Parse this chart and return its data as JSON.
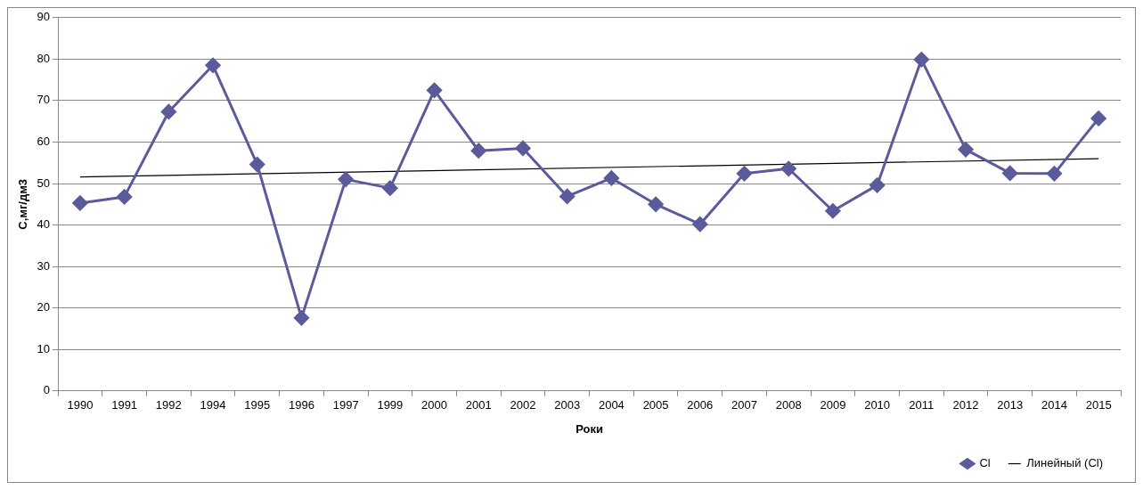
{
  "chart_data": {
    "type": "line",
    "xlabel": "Роки",
    "ylabel": "C,мг/дм3",
    "categories": [
      "1990",
      "1991",
      "1992",
      "1994",
      "1995",
      "1996",
      "1997",
      "1999",
      "2000",
      "2001",
      "2002",
      "2003",
      "2004",
      "2005",
      "2006",
      "2007",
      "2008",
      "2009",
      "2010",
      "2011",
      "2012",
      "2013",
      "2014",
      "2015"
    ],
    "series": [
      {
        "name": "Cl",
        "color": "#5b5b9b",
        "marker": "diamond",
        "values": [
          45.3,
          46.8,
          67.3,
          78.5,
          54.6,
          17.6,
          51.0,
          48.9,
          72.5,
          57.9,
          58.5,
          46.9,
          51.3,
          45.0,
          40.2,
          52.4,
          53.6,
          43.4,
          49.6,
          79.9,
          58.2,
          52.5,
          52.4,
          65.7
        ]
      },
      {
        "name": "Линейный (Cl)",
        "color": "#000000",
        "marker": "none",
        "values": [
          51.6,
          null,
          null,
          null,
          null,
          null,
          null,
          null,
          null,
          null,
          null,
          null,
          null,
          null,
          null,
          null,
          null,
          null,
          null,
          null,
          null,
          null,
          null,
          56.0
        ]
      }
    ],
    "ylim": [
      0,
      90
    ],
    "yticks": [
      0,
      10,
      20,
      30,
      40,
      50,
      60,
      70,
      80,
      90
    ],
    "grid": "y",
    "legend": "bottom right"
  }
}
